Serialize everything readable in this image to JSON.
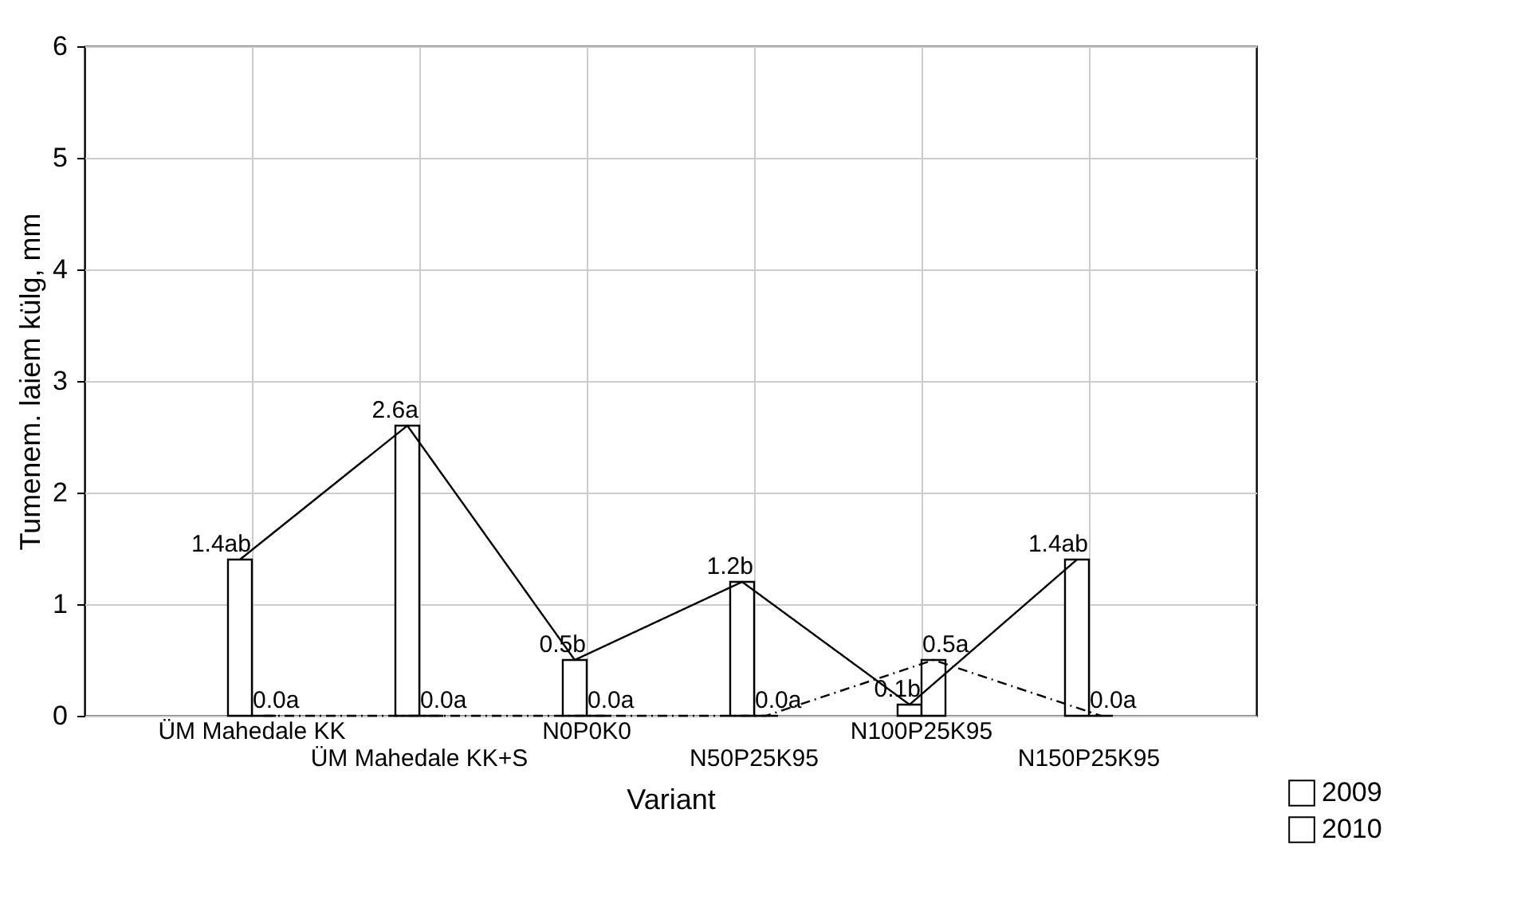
{
  "chart_data": {
    "type": "bar",
    "xlabel": "Variant",
    "ylabel": "Tumenem. laiem külg, mm",
    "categories": [
      "ÜM Mahedale KK",
      "ÜM Mahedale KK+S",
      "N0P0K0",
      "N50P25K95",
      "N100P25K95",
      "N150P25K95"
    ],
    "series": [
      {
        "name": "2009",
        "color": "#000000",
        "values": [
          1.4,
          2.6,
          0.5,
          1.2,
          0.1,
          1.4
        ],
        "value_labels": [
          "1.4ab",
          "2.6a",
          "0.5b",
          "1.2b",
          "0.1b",
          "1.4ab"
        ],
        "line_style": "solid"
      },
      {
        "name": "2010",
        "color": "#000000",
        "values": [
          0.0,
          0.0,
          0.0,
          0.0,
          0.5,
          0.0
        ],
        "value_labels": [
          "0.0a",
          "0.0a",
          "0.0a",
          "0.0a",
          "0.5a",
          "0.0a"
        ],
        "line_style": "dashed"
      }
    ],
    "ylim": [
      0,
      6
    ],
    "yticks": [
      0,
      1,
      2,
      3,
      4,
      5,
      6
    ],
    "grid": true,
    "legend": "bottom right"
  }
}
